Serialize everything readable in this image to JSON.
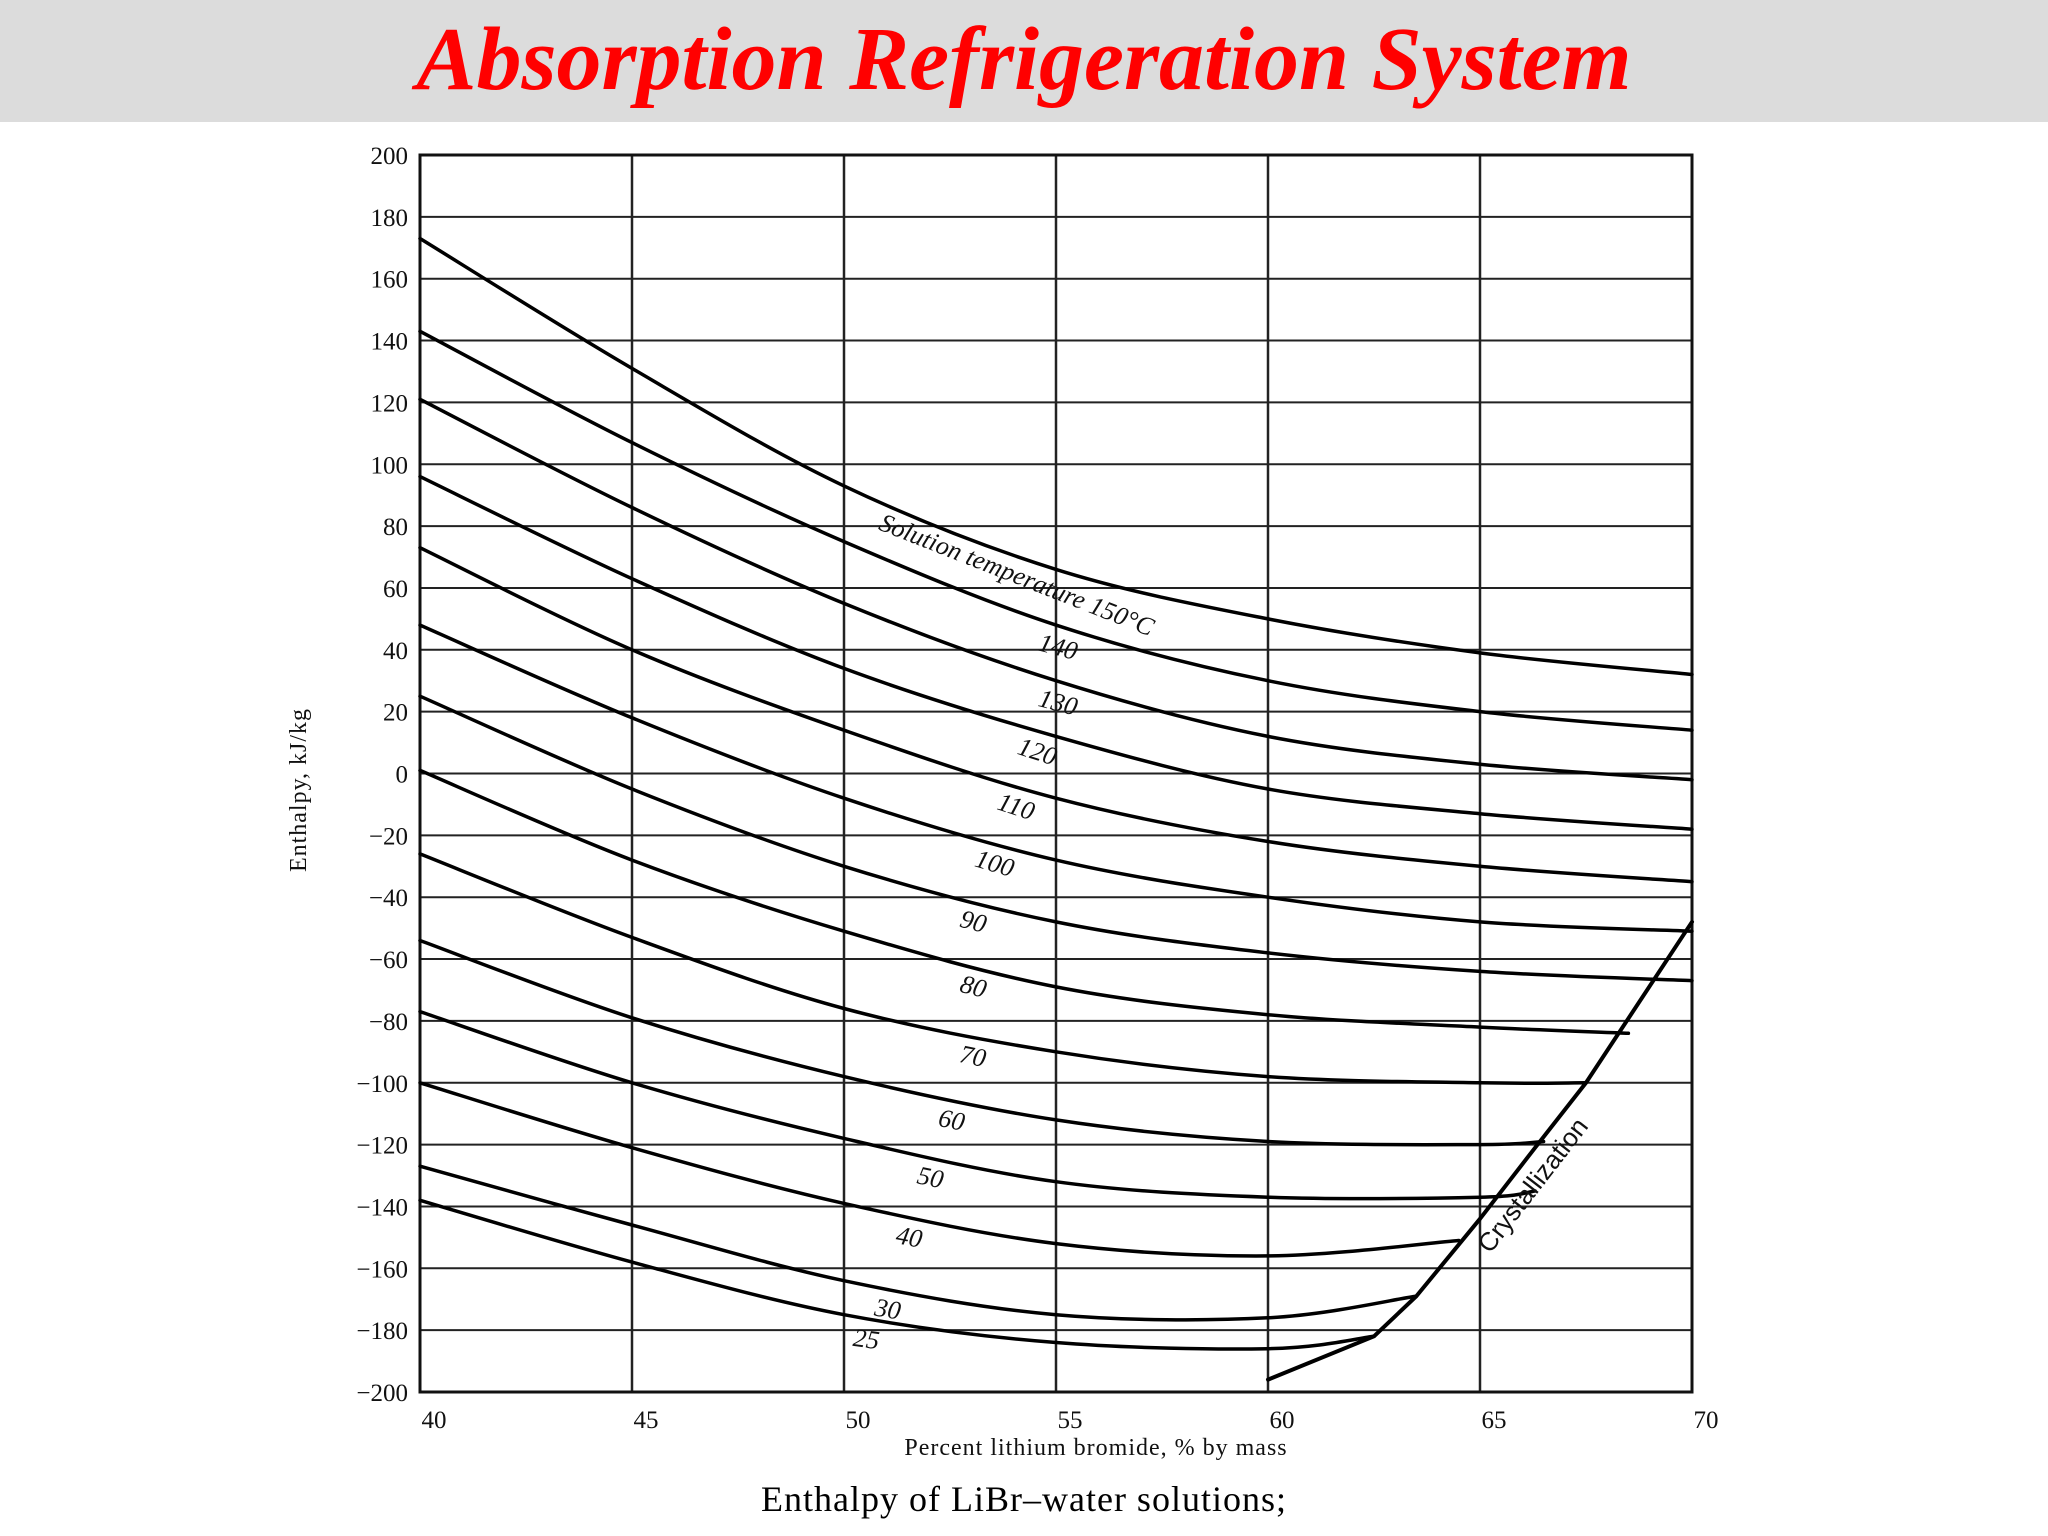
{
  "slide": {
    "title": "Absorption Refrigeration System",
    "caption": "Enthalpy of LiBr–water solutions;",
    "title_color": "#ff0000",
    "title_bar_color": "#dcdcdc"
  },
  "chart_data": {
    "type": "line",
    "xlabel": "Percent lithium bromide, % by mass",
    "ylabel": "Enthalpy, kJ/kg",
    "xlim": [
      40,
      70
    ],
    "ylim": [
      -200,
      200
    ],
    "x_ticks": [
      40,
      45,
      50,
      55,
      60,
      65,
      70
    ],
    "y_ticks": [
      200,
      180,
      160,
      140,
      120,
      100,
      80,
      60,
      40,
      20,
      0,
      -20,
      -40,
      -60,
      -80,
      -100,
      -120,
      -140,
      -160,
      -180,
      -200
    ],
    "x_tick_labels": [
      "40",
      "45",
      "50",
      "55",
      "60",
      "65",
      "70"
    ],
    "y_tick_labels": [
      "200",
      "180",
      "160",
      "140",
      "120",
      "100",
      "80",
      "60",
      "40",
      "20",
      "0",
      "−20",
      "−40",
      "−60",
      "−80",
      "−100",
      "−120",
      "−140",
      "−160",
      "−180",
      "−200"
    ],
    "grid": true,
    "legend": "none",
    "series": [
      {
        "name": "Solution temperature 150°C",
        "label_x": 54,
        "x": [
          40,
          45,
          50,
          55,
          60,
          65,
          70
        ],
        "y": [
          173,
          131,
          93,
          66,
          50,
          39,
          32
        ]
      },
      {
        "name": "140",
        "label_x": 55,
        "x": [
          40,
          45,
          50,
          55,
          60,
          65,
          70
        ],
        "y": [
          143,
          107,
          75,
          48,
          30,
          20,
          14
        ]
      },
      {
        "name": "130",
        "label_x": 55,
        "x": [
          40,
          45,
          50,
          55,
          60,
          65,
          70
        ],
        "y": [
          121,
          86,
          55,
          30,
          12,
          3,
          -2
        ]
      },
      {
        "name": "120",
        "label_x": 54.5,
        "x": [
          40,
          45,
          50,
          55,
          60,
          65,
          70
        ],
        "y": [
          96,
          63,
          34,
          12,
          -5,
          -13,
          -18
        ]
      },
      {
        "name": "110",
        "label_x": 54,
        "x": [
          40,
          45,
          50,
          55,
          60,
          65,
          70
        ],
        "y": [
          73,
          40,
          14,
          -8,
          -22,
          -30,
          -35
        ]
      },
      {
        "name": "100",
        "label_x": 53.5,
        "x": [
          40,
          45,
          50,
          55,
          60,
          65,
          70
        ],
        "y": [
          48,
          18,
          -8,
          -28,
          -40,
          -48,
          -51
        ]
      },
      {
        "name": "90",
        "label_x": 53,
        "x": [
          40,
          45,
          50,
          55,
          60,
          65,
          70
        ],
        "y": [
          25,
          -5,
          -30,
          -48,
          -58,
          -64,
          -67
        ]
      },
      {
        "name": "80",
        "label_x": 53,
        "x": [
          40,
          45,
          50,
          55,
          60,
          65,
          68.5
        ],
        "y": [
          1,
          -28,
          -51,
          -69,
          -78,
          -82,
          -84
        ]
      },
      {
        "name": "70",
        "label_x": 53,
        "x": [
          40,
          45,
          50,
          55,
          60,
          65,
          67.5
        ],
        "y": [
          -26,
          -53,
          -76,
          -90,
          -98,
          -100,
          -100
        ]
      },
      {
        "name": "60",
        "label_x": 52.5,
        "x": [
          40,
          45,
          50,
          55,
          60,
          65,
          66.5
        ],
        "y": [
          -54,
          -79,
          -98,
          -112,
          -119,
          -120,
          -119
        ]
      },
      {
        "name": "50",
        "label_x": 52,
        "x": [
          40,
          45,
          50,
          55,
          60,
          65,
          66.3
        ],
        "y": [
          -77,
          -100,
          -118,
          -132,
          -137,
          -137,
          -135
        ]
      },
      {
        "name": "40",
        "label_x": 51.5,
        "x": [
          40,
          45,
          50,
          55,
          60,
          64.5
        ],
        "y": [
          -100,
          -121,
          -139,
          -152,
          -156,
          -151
        ]
      },
      {
        "name": "30",
        "label_x": 51,
        "x": [
          40,
          45,
          50,
          55,
          60,
          63.5
        ],
        "y": [
          -127,
          -146,
          -164,
          -175,
          -176,
          -169
        ]
      },
      {
        "name": "25",
        "label_x": 50.5,
        "x": [
          40,
          45,
          50,
          55,
          60,
          62.5
        ],
        "y": [
          -138,
          -158,
          -175,
          -184,
          -186,
          -182
        ]
      },
      {
        "name": "Crystallization",
        "x": [
          60,
          62.5,
          63.5,
          65,
          66.3,
          67.5,
          70
        ],
        "y": [
          -196,
          -182,
          -169,
          -144,
          -121,
          -100,
          -48
        ]
      }
    ]
  }
}
